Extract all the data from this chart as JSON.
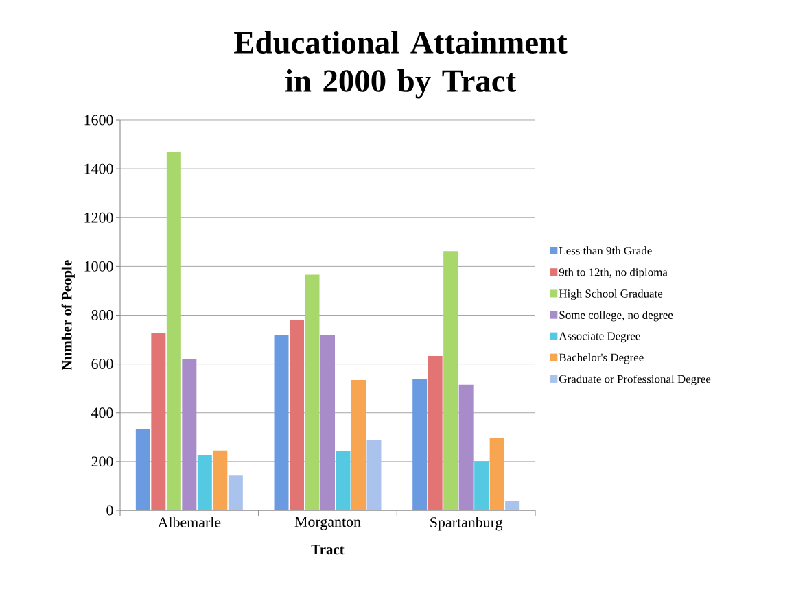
{
  "chart_data": {
    "type": "bar",
    "title": "Educational Attainment in 2000 by Tract",
    "xlabel": "Tract",
    "ylabel": "Number of People",
    "categories": [
      "Albemarle",
      "Morganton",
      "Spartanburg"
    ],
    "series": [
      {
        "name": "Less than 9th Grade",
        "color": "#6a9be0",
        "values": [
          334,
          720,
          537
        ]
      },
      {
        "name": "9th to 12th, no diploma",
        "color": "#e37474",
        "values": [
          728,
          779,
          633
        ]
      },
      {
        "name": "High School Graduate",
        "color": "#a8d86c",
        "values": [
          1470,
          966,
          1062
        ]
      },
      {
        "name": "Some college, no degree",
        "color": "#a88cc9",
        "values": [
          619,
          720,
          515
        ]
      },
      {
        "name": "Associate Degree",
        "color": "#55c8e2",
        "values": [
          225,
          242,
          202
        ]
      },
      {
        "name": "Bachelor's Degree",
        "color": "#f8a552",
        "values": [
          245,
          534,
          298
        ]
      },
      {
        "name": "Graduate or Professional Degree",
        "color": "#a9c3ec",
        "values": [
          143,
          287,
          39
        ]
      }
    ],
    "ylim": [
      0,
      1600
    ],
    "yticks": [
      0,
      200,
      400,
      600,
      800,
      1000,
      1200,
      1400,
      1600
    ],
    "grid": "y",
    "legend": "right"
  }
}
